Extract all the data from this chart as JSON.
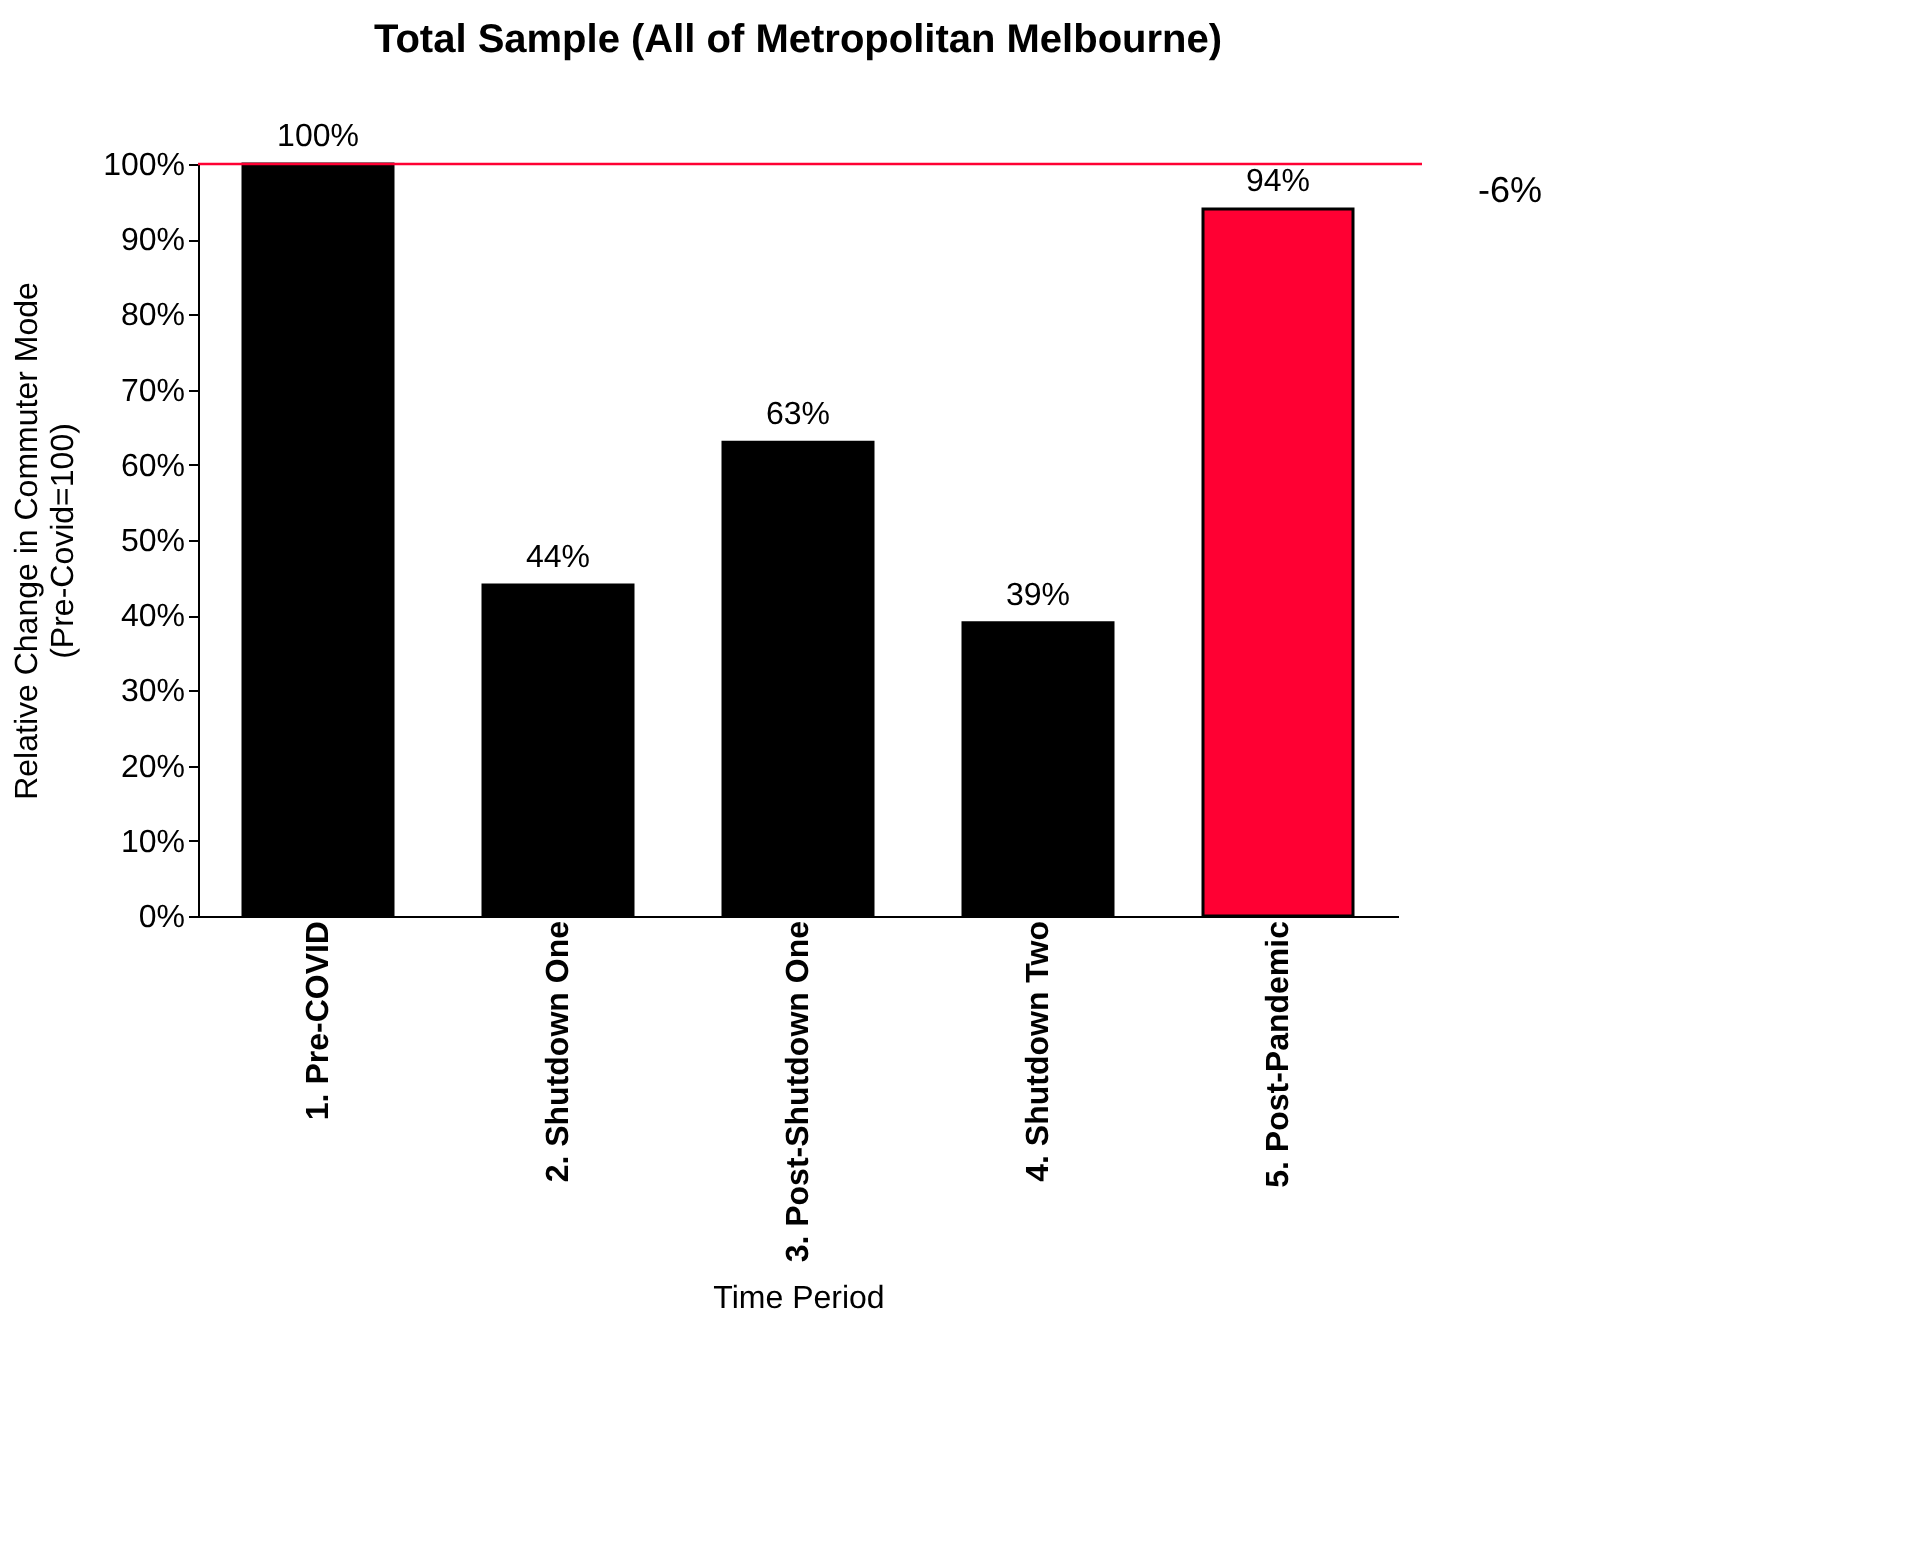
{
  "chart_data": {
    "type": "bar",
    "title": "Total Sample (All of Metropolitan Melbourne)",
    "xlabel": "Time Period",
    "ylabel": "Relative Change in Commuter Mode\n(Pre-Covid=100)",
    "categories": [
      "1. Pre-COVID",
      "2. Shutdown One",
      "3. Post-Shutdown One",
      "4. Shutdown Two",
      "5. Post-Pandemic"
    ],
    "values": [
      100,
      44,
      63,
      39,
      94
    ],
    "colors": [
      "#000000",
      "#000000",
      "#000000",
      "#000000",
      "#ff0033"
    ],
    "value_labels": [
      "100%",
      "44%",
      "63%",
      "39%",
      "94%"
    ],
    "ylim": [
      0,
      100
    ],
    "yticks": [
      {
        "value": 0,
        "label": "0%"
      },
      {
        "value": 10,
        "label": "10%"
      },
      {
        "value": 20,
        "label": "20%"
      },
      {
        "value": 30,
        "label": "30%"
      },
      {
        "value": 40,
        "label": "40%"
      },
      {
        "value": 50,
        "label": "50%"
      },
      {
        "value": 60,
        "label": "60%"
      },
      {
        "value": 70,
        "label": "70%"
      },
      {
        "value": 80,
        "label": "80%"
      },
      {
        "value": 90,
        "label": "90%"
      },
      {
        "value": 100,
        "label": "100%"
      }
    ],
    "ref_lines": [
      {
        "axis": "y",
        "value": 100,
        "label": null,
        "color": "#ff0033"
      }
    ],
    "annotations": [
      "-6%"
    ],
    "grid": false
  }
}
